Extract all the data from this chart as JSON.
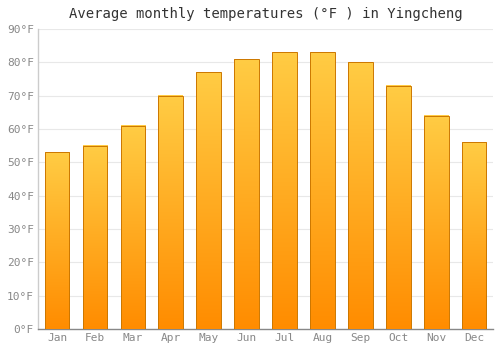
{
  "title": "Average monthly temperatures (°F ) in Yingcheng",
  "months": [
    "Jan",
    "Feb",
    "Mar",
    "Apr",
    "May",
    "Jun",
    "Jul",
    "Aug",
    "Sep",
    "Oct",
    "Nov",
    "Dec"
  ],
  "values": [
    53,
    55,
    61,
    70,
    77,
    81,
    83,
    83,
    80,
    73,
    64,
    56
  ],
  "bar_color_top": "#FFCC44",
  "bar_color_bottom": "#FF8C00",
  "bar_edge_color": "#CC7700",
  "ylim": [
    0,
    90
  ],
  "yticks": [
    0,
    10,
    20,
    30,
    40,
    50,
    60,
    70,
    80,
    90
  ],
  "ytick_labels": [
    "0°F",
    "10°F",
    "20°F",
    "30°F",
    "40°F",
    "50°F",
    "60°F",
    "70°F",
    "80°F",
    "90°F"
  ],
  "background_color": "#FFFFFF",
  "grid_color": "#E8E8E8",
  "title_fontsize": 10,
  "tick_fontsize": 8,
  "tick_color": "#888888"
}
